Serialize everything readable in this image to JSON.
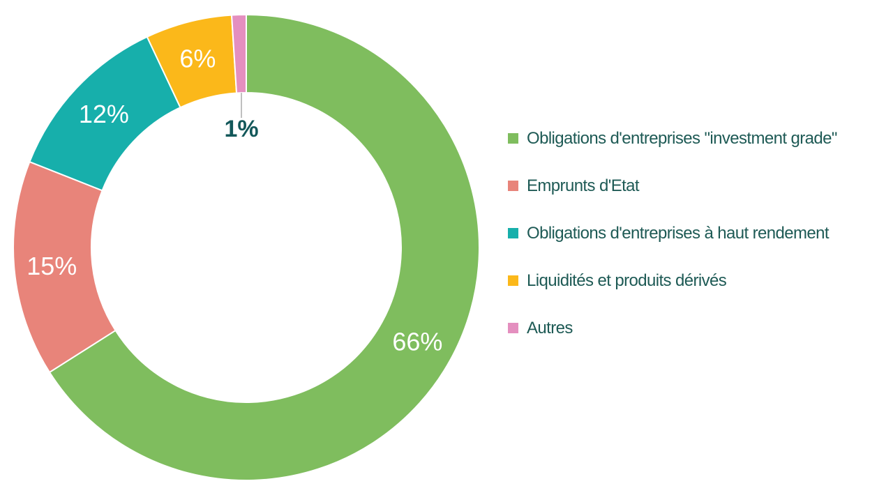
{
  "chart_data": {
    "type": "pie",
    "variant": "donut",
    "title": "",
    "unit": "%",
    "slices": [
      {
        "label": "Obligations d'entreprises \"investment grade\"",
        "value": 66,
        "display": "66%",
        "color": "#7fbd5e"
      },
      {
        "label": "Emprunts d'Etat",
        "value": 15,
        "display": "15%",
        "color": "#e8847a"
      },
      {
        "label": "Obligations d'entreprises à haut rendement",
        "value": 12,
        "display": "12%",
        "color": "#17afab"
      },
      {
        "label": "Liquidités et produits dérivés",
        "value": 6,
        "display": "6%",
        "color": "#fbb81a"
      },
      {
        "label": "Autres",
        "value": 1,
        "display": "1%",
        "color": "#e48fbf"
      }
    ],
    "start": "top",
    "direction": "clockwise",
    "legend_position": "right",
    "label_color_inside": "#ffffff",
    "label_color_outside": "#13585a",
    "legend_text_color": "#1e5a55"
  }
}
